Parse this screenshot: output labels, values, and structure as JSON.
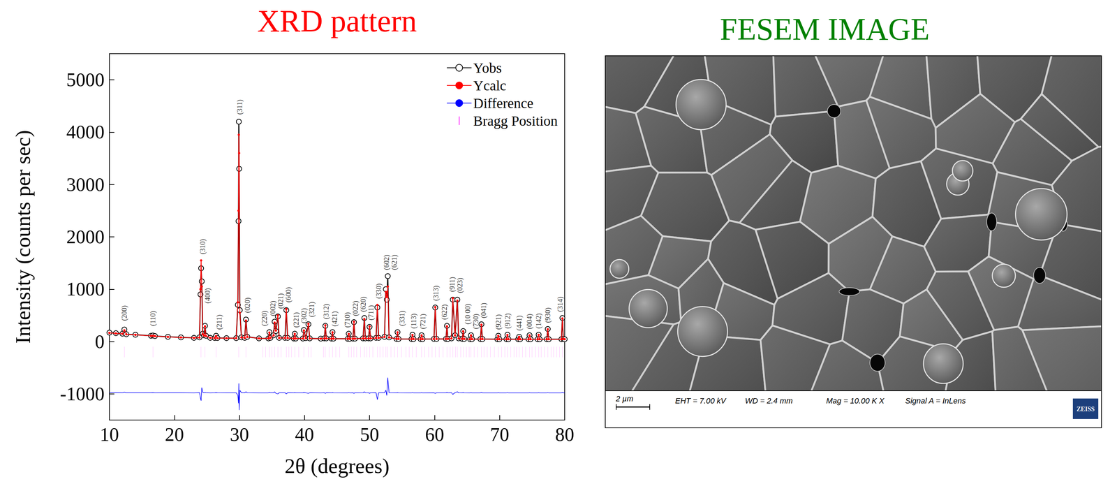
{
  "chart_data": {
    "type": "line",
    "title": "XRD pattern",
    "x_label": "2θ (degrees)",
    "y_label": "Intensity (counts per sec)",
    "xlim": [
      10,
      80
    ],
    "xticks": [
      10,
      20,
      30,
      40,
      50,
      60,
      70,
      80
    ],
    "ylim": [
      -1500,
      5500
    ],
    "yticks": [
      -1000,
      0,
      1000,
      2000,
      3000,
      4000,
      5000
    ],
    "grid": false,
    "legend": "upper right",
    "x": [
      10,
      11,
      12.0,
      12.3,
      12.6,
      14,
      16.4,
      16.7,
      17.0,
      19,
      21,
      23.0,
      23.85,
      24.0,
      24.1,
      24.2,
      24.35,
      24.55,
      24.7,
      24.85,
      25.5,
      26.2,
      26.4,
      26.6,
      28,
      29.5,
      29.75,
      29.85,
      29.9,
      29.95,
      30.05,
      30.3,
      30.8,
      31.0,
      31.2,
      33,
      34.45,
      34.6,
      34.75,
      35.25,
      35.4,
      35.6,
      35.9,
      36.1,
      37.0,
      37.2,
      37.4,
      38.35,
      38.5,
      38.65,
      39.75,
      39.9,
      40.2,
      40.6,
      40.8,
      42.5,
      43.05,
      43.2,
      43.35,
      44.15,
      44.3,
      44.45,
      46.65,
      46.8,
      46.95,
      47.45,
      47.6,
      47.75,
      49.0,
      49.2,
      49.35,
      49.85,
      50.0,
      50.15,
      51.0,
      51.2,
      51.4,
      52.3,
      52.5,
      52.65,
      52.8,
      53.0,
      54.15,
      54.3,
      54.45,
      56.45,
      56.6,
      56.75,
      57.85,
      58.0,
      58.15,
      59.9,
      60.1,
      60.3,
      61.75,
      61.9,
      62.05,
      62.6,
      62.8,
      63.15,
      63.5,
      63.7,
      64.25,
      64.4,
      64.55,
      65.45,
      65.6,
      65.75,
      67.05,
      67.2,
      67.35,
      69.65,
      69.8,
      69.95,
      71.05,
      71.2,
      71.35,
      72.85,
      73.0,
      73.15,
      74.45,
      74.6,
      74.75,
      75.85,
      76.0,
      76.15,
      77.25,
      77.4,
      77.55,
      79.5,
      79.65,
      79.8,
      80
    ],
    "series": [
      {
        "name": "Yobs",
        "color": "#000000",
        "marker": "open_circle",
        "line_style": "solid",
        "values": [
          170,
          160,
          150,
          230,
          140,
          130,
          110,
          115,
          105,
          90,
          80,
          70,
          80,
          900,
          1400,
          1150,
          150,
          120,
          300,
          110,
          70,
          68,
          110,
          68,
          65,
          65,
          700,
          2300,
          4200,
          3300,
          600,
          80,
          70,
          420,
          90,
          60,
          60,
          180,
          70,
          120,
          380,
          200,
          480,
          70,
          70,
          600,
          70,
          58,
          150,
          58,
          58,
          220,
          65,
          330,
          60,
          55,
          60,
          300,
          60,
          55,
          180,
          55,
          52,
          150,
          52,
          55,
          370,
          55,
          60,
          450,
          60,
          60,
          280,
          60,
          70,
          650,
          70,
          90,
          1000,
          800,
          1250,
          80,
          50,
          180,
          50,
          48,
          130,
          48,
          47,
          120,
          47,
          50,
          650,
          50,
          50,
          300,
          50,
          60,
          800,
          120,
          800,
          60,
          50,
          200,
          50,
          46,
          120,
          46,
          48,
          330,
          48,
          45,
          110,
          45,
          45,
          130,
          45,
          45,
          90,
          45,
          45,
          120,
          45,
          45,
          130,
          45,
          45,
          240,
          45,
          45,
          450,
          50,
          45
        ]
      },
      {
        "name": "Ycalc",
        "color": "#ff0000",
        "marker": "dot",
        "line_style": "solid",
        "values": [
          165,
          155,
          148,
          215,
          138,
          128,
          108,
          110,
          104,
          88,
          78,
          70,
          75,
          1000,
          1550,
          1050,
          140,
          115,
          290,
          105,
          70,
          66,
          105,
          66,
          64,
          64,
          750,
          2500,
          3950,
          3600,
          550,
          78,
          68,
          400,
          88,
          60,
          60,
          170,
          68,
          118,
          360,
          210,
          500,
          68,
          68,
          620,
          68,
          57,
          145,
          57,
          57,
          210,
          64,
          340,
          58,
          55,
          58,
          310,
          58,
          54,
          175,
          54,
          52,
          145,
          52,
          54,
          380,
          54,
          58,
          430,
          58,
          59,
          290,
          59,
          68,
          700,
          68,
          88,
          950,
          850,
          1050,
          78,
          49,
          175,
          49,
          48,
          125,
          48,
          47,
          118,
          47,
          49,
          660,
          49,
          49,
          290,
          49,
          58,
          830,
          115,
          780,
          58,
          49,
          195,
          49,
          46,
          118,
          46,
          48,
          320,
          48,
          45,
          108,
          45,
          45,
          125,
          45,
          45,
          90,
          45,
          45,
          118,
          45,
          45,
          128,
          45,
          45,
          235,
          45,
          45,
          440,
          50,
          45
        ]
      },
      {
        "name": "Difference",
        "color": "#0000ff",
        "marker": "none",
        "line_style": "solid",
        "values": [
          -975,
          -975,
          -978,
          -965,
          -978,
          -978,
          -978,
          -975,
          -979,
          -978,
          -978,
          -980,
          -975,
          -1080,
          -1130,
          -880,
          -970,
          -975,
          -970,
          -975,
          -980,
          -978,
          -975,
          -978,
          -979,
          -979,
          -1030,
          -1180,
          -800,
          -1310,
          -930,
          -978,
          -978,
          -960,
          -978,
          -980,
          -980,
          -970,
          -978,
          -978,
          -960,
          -990,
          -1000,
          -978,
          -978,
          -1000,
          -978,
          -979,
          -975,
          -979,
          -979,
          -970,
          -979,
          -990,
          -978,
          -980,
          -978,
          -990,
          -978,
          -979,
          -975,
          -979,
          -980,
          -975,
          -980,
          -979,
          -990,
          -979,
          -978,
          -960,
          -978,
          -979,
          -990,
          -979,
          -978,
          -1110,
          -978,
          -978,
          -930,
          -1030,
          -690,
          -978,
          -979,
          -975,
          -979,
          -980,
          -975,
          -980,
          -980,
          -978,
          -980,
          -979,
          -990,
          -979,
          -979,
          -970,
          -979,
          -978,
          -1010,
          -975,
          -960,
          -978,
          -979,
          -975,
          -979,
          -980,
          -978,
          -980,
          -980,
          -970,
          -980,
          -980,
          -978,
          -980,
          -980,
          -975,
          -980,
          -980,
          -980,
          -980,
          -980,
          -978,
          -980,
          -980,
          -978,
          -980,
          -980,
          -975,
          -980,
          -980,
          -970,
          -980,
          -980
        ]
      },
      {
        "name": "Bragg Position",
        "color": "#ff00ff",
        "type": "scatter",
        "marker": "vline",
        "x": [
          12.3,
          16.7,
          24.1,
          24.7,
          26.4,
          29.9,
          31.0,
          33.6,
          34.0,
          34.6,
          35.0,
          35.4,
          35.9,
          36.4,
          37.2,
          37.6,
          38.0,
          38.5,
          39.1,
          39.9,
          40.6,
          41.0,
          42.9,
          43.2,
          43.8,
          44.3,
          44.8,
          45.4,
          46.8,
          47.2,
          47.6,
          48.0,
          48.6,
          49.2,
          49.6,
          50.0,
          50.5,
          51.2,
          51.6,
          52.1,
          52.5,
          52.8,
          53.3,
          53.8,
          54.3,
          54.9,
          55.6,
          56.1,
          56.6,
          57.2,
          58.0,
          58.5,
          59.1,
          59.6,
          60.1,
          60.7,
          61.3,
          61.9,
          62.4,
          62.8,
          63.2,
          63.5,
          64.0,
          64.4,
          64.9,
          65.3,
          65.6,
          66.1,
          66.6,
          67.2,
          67.6,
          68.1,
          68.6,
          69.2,
          69.8,
          70.3,
          70.8,
          71.2,
          71.7,
          72.2,
          72.6,
          73.0,
          73.5,
          74.0,
          74.6,
          75.0,
          75.5,
          76.0,
          76.4,
          76.9,
          77.4,
          77.9,
          78.3,
          78.8,
          79.2,
          79.65
        ],
        "values": [
          -200,
          -200,
          -200,
          -200,
          -200,
          -200,
          -200,
          -200,
          -200,
          -200,
          -200,
          -200,
          -200,
          -200,
          -200,
          -200,
          -200,
          -200,
          -200,
          -200,
          -200,
          -200,
          -200,
          -200,
          -200,
          -200,
          -200,
          -200,
          -200,
          -200,
          -200,
          -200,
          -200,
          -200,
          -200,
          -200,
          -200,
          -200,
          -200,
          -200,
          -200,
          -200,
          -200,
          -200,
          -200,
          -200,
          -200,
          -200,
          -200,
          -200,
          -200,
          -200,
          -200,
          -200,
          -200,
          -200,
          -200,
          -200,
          -200,
          -200,
          -200,
          -200,
          -200,
          -200,
          -200,
          -200,
          -200,
          -200,
          -200,
          -200,
          -200,
          -200,
          -200,
          -200,
          -200,
          -200,
          -200,
          -200,
          -200,
          -200,
          -200,
          -200,
          -200,
          -200,
          -200,
          -200,
          -200,
          -200,
          -200,
          -200,
          -200,
          -200,
          -200,
          -200,
          -200,
          -200
        ]
      }
    ],
    "annotations": [
      {
        "text": "(200)",
        "x": 12.3,
        "y": 330
      },
      {
        "text": "(110)",
        "x": 16.7,
        "y": 230
      },
      {
        "text": "(310)",
        "x": 24.3,
        "y": 1600
      },
      {
        "text": "(400)",
        "x": 25.1,
        "y": 660
      },
      {
        "text": "(211)",
        "x": 26.9,
        "y": 160
      },
      {
        "text": "(311)",
        "x": 30.0,
        "y": 4270
      },
      {
        "text": "(020)",
        "x": 31.2,
        "y": 480
      },
      {
        "text": "(220)",
        "x": 33.8,
        "y": 230
      },
      {
        "text": "(002)",
        "x": 35.1,
        "y": 420
      },
      {
        "text": "(021)",
        "x": 36.3,
        "y": 560
      },
      {
        "text": "(600)",
        "x": 37.5,
        "y": 680
      },
      {
        "text": "(221)",
        "x": 38.7,
        "y": 200
      },
      {
        "text": "(302)",
        "x": 39.9,
        "y": 280
      },
      {
        "text": "(321)",
        "x": 41.1,
        "y": 400
      },
      {
        "text": "(312)",
        "x": 43.3,
        "y": 360
      },
      {
        "text": "(421)",
        "x": 44.6,
        "y": 220
      },
      {
        "text": "(710)",
        "x": 46.6,
        "y": 200
      },
      {
        "text": "(022)",
        "x": 47.8,
        "y": 420
      },
      {
        "text": "(620)",
        "x": 49.0,
        "y": 500
      },
      {
        "text": "(711)",
        "x": 50.2,
        "y": 340
      },
      {
        "text": "(330)",
        "x": 51.4,
        "y": 750
      },
      {
        "text": "(602)",
        "x": 52.6,
        "y": 1300
      },
      {
        "text": "(621)",
        "x": 53.8,
        "y": 1300
      },
      {
        "text": "(331)",
        "x": 55.0,
        "y": 230
      },
      {
        "text": "(113)",
        "x": 56.8,
        "y": 180
      },
      {
        "text": "(721)",
        "x": 58.2,
        "y": 170
      },
      {
        "text": "(313)",
        "x": 60.2,
        "y": 710
      },
      {
        "text": "(622)",
        "x": 61.5,
        "y": 350
      },
      {
        "text": "(911)",
        "x": 62.7,
        "y": 880
      },
      {
        "text": "(023)",
        "x": 63.9,
        "y": 860
      },
      {
        "text": "(10 00)",
        "x": 65.1,
        "y": 260
      },
      {
        "text": "(730)",
        "x": 66.3,
        "y": 170
      },
      {
        "text": "(041)",
        "x": 67.5,
        "y": 380
      },
      {
        "text": "(921)",
        "x": 69.8,
        "y": 160
      },
      {
        "text": "(912)",
        "x": 71.2,
        "y": 180
      },
      {
        "text": "(441)",
        "x": 73.0,
        "y": 140
      },
      {
        "text": "(004)",
        "x": 74.6,
        "y": 170
      },
      {
        "text": "(142)",
        "x": 76.0,
        "y": 180
      },
      {
        "text": "(930)",
        "x": 77.4,
        "y": 290
      },
      {
        "text": "(314)",
        "x": 79.3,
        "y": 500
      }
    ]
  },
  "image_panel": {
    "title": "FESEM IMAGE",
    "scale_bar": "2 µm",
    "info": [
      "EHT = 7.00 kV",
      "WD = 2.4 mm",
      "Mag = 10.00 K X",
      "Signal A = InLens"
    ],
    "logo": "ZEISS"
  }
}
